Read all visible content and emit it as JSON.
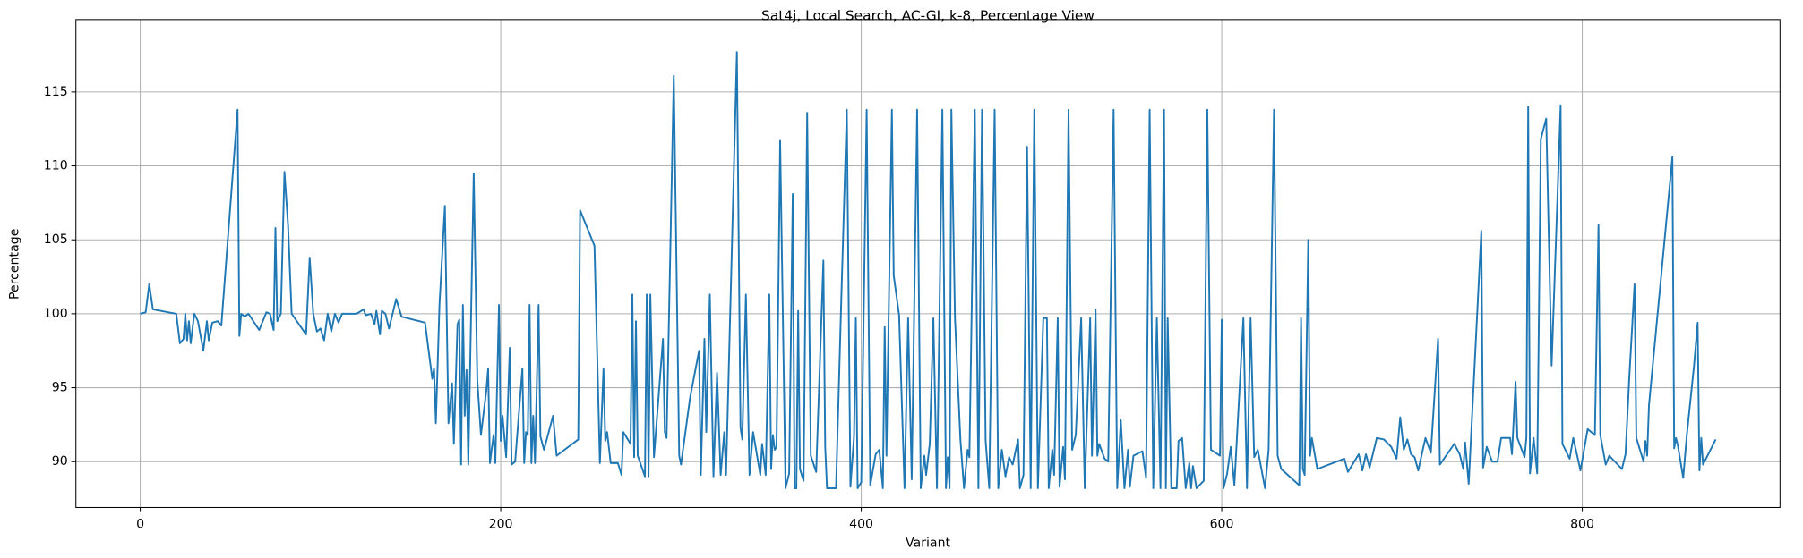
{
  "chart_data": {
    "type": "line",
    "title": "Sat4j, Local Search, AC-GI, k-8, Percentage View",
    "x_label": "Variant",
    "y_label": "Percentage",
    "color": "#1f77b4",
    "grid": true,
    "xlim": [
      -35.7,
      909.7
    ],
    "ylim": [
      86.9,
      119.9
    ],
    "xticks": [
      0,
      200,
      400,
      600,
      800
    ],
    "yticks": [
      90,
      95,
      100,
      105,
      110,
      115
    ],
    "x": [
      0,
      3,
      5,
      7,
      20,
      22,
      24,
      25,
      26,
      27,
      28,
      30,
      32,
      35,
      37,
      38,
      40,
      43,
      45,
      54,
      55,
      56,
      58,
      60,
      66,
      70,
      72,
      74,
      75,
      76,
      78,
      80,
      82,
      84,
      92,
      94,
      96,
      98,
      100,
      102,
      104,
      106,
      108,
      110,
      112,
      120,
      124,
      125,
      128,
      130,
      131,
      133,
      134,
      136,
      138,
      142,
      145,
      158,
      162,
      163,
      164,
      166,
      169,
      171,
      173,
      174,
      176,
      177,
      178,
      179,
      180,
      181,
      182,
      185,
      187,
      189,
      192,
      193,
      194,
      196,
      197,
      199,
      200,
      201,
      203,
      205,
      206,
      208,
      212,
      213,
      214,
      215,
      216,
      217,
      218,
      219,
      221,
      222,
      224,
      229,
      231,
      243,
      244,
      252,
      255,
      257,
      258,
      259,
      261,
      265,
      267,
      268,
      272,
      273,
      274,
      275,
      276,
      280,
      281,
      282,
      283,
      285,
      290,
      291,
      292,
      296,
      299,
      300,
      305,
      310,
      311,
      313,
      314,
      316,
      318,
      320,
      322,
      324,
      325,
      331,
      333,
      334,
      336,
      338,
      340,
      344,
      345,
      347,
      349,
      350,
      351,
      352,
      353,
      355,
      358,
      360,
      362,
      363,
      364,
      365,
      366,
      368,
      370,
      372,
      375,
      379,
      380,
      381,
      386,
      389,
      392,
      394,
      396,
      397,
      398,
      400,
      403,
      405,
      408,
      410,
      412,
      413,
      414,
      417,
      418,
      420,
      421,
      424,
      426,
      428,
      431,
      433,
      435,
      436,
      438,
      440,
      442,
      445,
      447,
      448,
      449,
      450,
      452,
      455,
      457,
      459,
      460,
      463,
      465,
      467,
      469,
      471,
      474,
      476,
      478,
      480,
      482,
      484,
      487,
      488,
      490,
      492,
      494,
      496,
      498,
      501,
      503,
      504,
      506,
      507,
      509,
      510,
      512,
      513,
      515,
      517,
      519,
      522,
      524,
      527,
      528,
      530,
      531,
      532,
      535,
      537,
      540,
      542,
      544,
      546,
      548,
      549,
      551,
      556,
      558,
      560,
      562,
      564,
      566,
      568,
      569,
      570,
      572,
      575,
      576,
      578,
      580,
      582,
      583,
      584,
      586,
      590,
      592,
      594,
      599,
      600,
      601,
      603,
      605,
      607,
      612,
      614,
      616,
      618,
      620,
      624,
      626,
      629,
      631,
      633,
      643,
      644,
      645,
      646,
      648,
      649,
      650,
      653,
      668,
      670,
      676,
      678,
      680,
      682,
      686,
      690,
      694,
      697,
      699,
      701,
      703,
      705,
      707,
      709,
      713,
      716,
      720,
      721,
      729,
      732,
      734,
      735,
      737,
      744,
      745,
      747,
      750,
      753,
      755,
      760,
      761,
      763,
      764,
      768,
      769,
      770,
      771,
      773,
      775,
      777,
      780,
      783,
      788,
      789,
      793,
      795,
      799,
      803,
      807,
      809,
      810,
      813,
      815,
      822,
      824,
      826,
      829,
      830,
      834,
      835,
      836,
      837,
      850,
      851,
      852,
      853,
      856,
      858,
      862,
      864,
      865,
      866,
      867,
      874
    ],
    "values": [
      100,
      100.1,
      102,
      100.3,
      100,
      98,
      98.3,
      100,
      98.2,
      99.5,
      98,
      100,
      99.5,
      97.5,
      99.5,
      98.2,
      99.4,
      99.5,
      99.2,
      113.8,
      98.5,
      100,
      99.8,
      100,
      98.9,
      100.1,
      100,
      98.9,
      105.8,
      99.5,
      100,
      109.6,
      106,
      100,
      98.6,
      103.8,
      100,
      98.8,
      99,
      98.2,
      100,
      98.8,
      100,
      99.4,
      100,
      100,
      100.3,
      99.9,
      100,
      99.3,
      100.2,
      98.6,
      100.2,
      100,
      99,
      101,
      99.8,
      99.4,
      95.6,
      96.3,
      92.6,
      100.6,
      107.3,
      92.6,
      95.3,
      91.2,
      99.3,
      99.6,
      89.8,
      100.6,
      93.1,
      96.2,
      89.8,
      109.5,
      95.5,
      91.8,
      94.8,
      96.3,
      89.9,
      91.8,
      89.9,
      100.6,
      91.4,
      93.1,
      90.3,
      97.7,
      89.8,
      90,
      96.3,
      89.9,
      92,
      91.8,
      100.6,
      89.9,
      93.1,
      89.9,
      100.6,
      91.7,
      90.8,
      93.1,
      90.4,
      91.5,
      107,
      104.6,
      89.9,
      96.3,
      91.4,
      92,
      89.9,
      89.9,
      89.1,
      92,
      91.2,
      101.3,
      90.3,
      99.5,
      90.4,
      89,
      101.3,
      89,
      101.3,
      90.3,
      98.3,
      92,
      91.6,
      116.1,
      90.4,
      89.8,
      94.3,
      97.5,
      89.1,
      98.3,
      92,
      101.3,
      89,
      96,
      89.1,
      92,
      89.1,
      117.7,
      92.3,
      91.5,
      101.3,
      89.1,
      92,
      89.1,
      91.2,
      89.1,
      101.3,
      89.5,
      91.8,
      90.8,
      91,
      111.7,
      88.2,
      89.2,
      108.1,
      88.2,
      88.2,
      100.2,
      89.5,
      88.7,
      113.6,
      90.4,
      89.3,
      103.6,
      91,
      88.2,
      88.2,
      101.3,
      113.8,
      88.3,
      91.7,
      99.7,
      88.2,
      88.6,
      113.8,
      88.4,
      90.5,
      90.8,
      88.2,
      99.1,
      90.4,
      113.8,
      102.6,
      100.8,
      99.9,
      88.2,
      99.7,
      88.8,
      113.8,
      88.2,
      90.4,
      89.1,
      91.2,
      99.7,
      88.2,
      113.8,
      88.2,
      90.3,
      88.2,
      113.8,
      99.7,
      91.5,
      88.2,
      90.8,
      90.3,
      113.8,
      88.2,
      113.8,
      91.4,
      88.2,
      113.8,
      88.2,
      90.8,
      89,
      90.3,
      89.8,
      91.5,
      88.2,
      89.1,
      111.3,
      88.2,
      113.8,
      88.2,
      99.7,
      99.7,
      88.2,
      90.8,
      89.1,
      99.7,
      88.3,
      91,
      88.8,
      113.8,
      90.8,
      91.8,
      99.7,
      88.2,
      99.7,
      90.4,
      100.3,
      90.4,
      91.2,
      90.2,
      90,
      113.8,
      88.2,
      92.8,
      88.2,
      90.8,
      88.3,
      90.4,
      90.7,
      88.9,
      113.8,
      88.2,
      99.7,
      88.2,
      113.8,
      88.2,
      99.7,
      88.2,
      88.2,
      91.4,
      91.6,
      88.2,
      89.9,
      88.2,
      89.7,
      88.2,
      88.7,
      113.8,
      90.8,
      90.4,
      99.6,
      88.2,
      89.2,
      91,
      88.4,
      99.7,
      88.2,
      99.7,
      90.3,
      90.8,
      88.2,
      90.8,
      113.8,
      90.4,
      89.5,
      88.4,
      99.7,
      89.5,
      89.1,
      105,
      90.4,
      91.6,
      89.5,
      90.2,
      89.3,
      90.5,
      89.4,
      90.5,
      89.6,
      91.6,
      91.5,
      91,
      90.2,
      93,
      90.8,
      91.5,
      90.5,
      90.3,
      89.4,
      91.6,
      90.6,
      98.3,
      89.8,
      91.2,
      90.5,
      89.5,
      91.3,
      88.5,
      105.6,
      89.6,
      91,
      90,
      90,
      91.6,
      91.6,
      90.5,
      95.4,
      91.6,
      90.3,
      91.6,
      114,
      89.2,
      91.6,
      89.2,
      111.8,
      113.2,
      96.5,
      114.1,
      91.2,
      90.2,
      91.6,
      89.4,
      92.2,
      91.8,
      106,
      91.8,
      89.8,
      90.4,
      89.5,
      90.5,
      95.5,
      102,
      91.6,
      90,
      91.4,
      90.4,
      93.8,
      110.6,
      90.9,
      91.6,
      91.1,
      88.9,
      91.8,
      96.5,
      99.4,
      89.4,
      91.6,
      89.8,
      91.5
    ]
  }
}
